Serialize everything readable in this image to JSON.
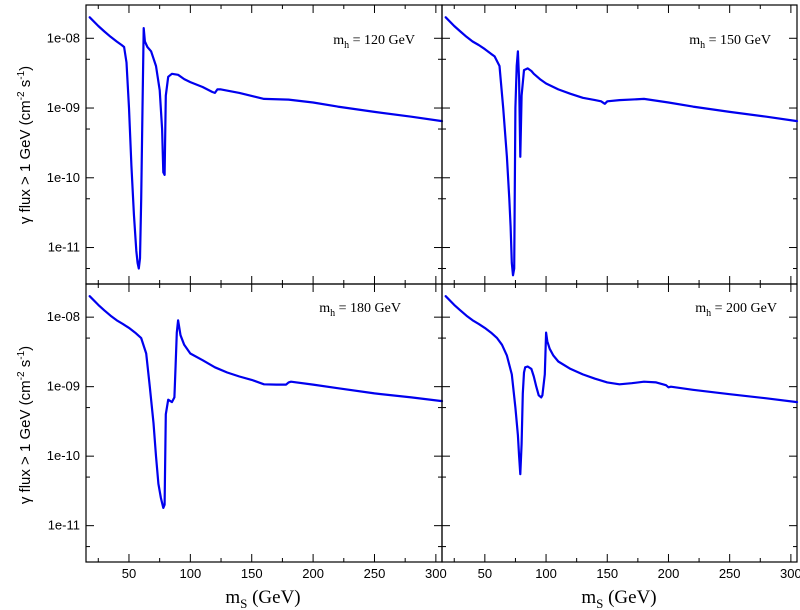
{
  "colors": {
    "series": "#0000ee",
    "axes": "#000000"
  },
  "chart_data": {
    "type": "line",
    "ylabel_parts": {
      "main": "γ flux > 1 GeV (cm",
      "exp1": "-2",
      "mid": " s",
      "exp2": "-1",
      "end": ")"
    },
    "xlabel_parts": {
      "base": "m",
      "sub": "S",
      "rest": " (GeV)"
    },
    "xlim": [
      15,
      305
    ],
    "ylim": [
      3e-12,
      3e-08
    ],
    "yscale": "log",
    "x_ticks": [
      50,
      100,
      150,
      200,
      250,
      300
    ],
    "x_tick_labels": [
      "50",
      "100",
      "150",
      "200",
      "250",
      "300"
    ],
    "y_ticks": [
      1e-08,
      1e-09,
      1e-10,
      1e-11
    ],
    "y_tick_labels": [
      "1e-08",
      "1e-09",
      "1e-10",
      "1e-11"
    ],
    "grid": false,
    "panels": [
      {
        "label_base": "m",
        "label_sub": "h",
        "label_rest": " = 120 GeV",
        "x": [
          18,
          25,
          30,
          35,
          40,
          44,
          46,
          48,
          50,
          52,
          54,
          56,
          57,
          58,
          59,
          60,
          61,
          62,
          63,
          65,
          68,
          72,
          75,
          77,
          78,
          79,
          80,
          82,
          85,
          90,
          95,
          100,
          110,
          118,
          120,
          122,
          125,
          140,
          160,
          180,
          200,
          220,
          250,
          280,
          305
        ],
        "y": [
          2e-08,
          1.5e-08,
          1.25e-08,
          1.05e-08,
          9e-09,
          8e-09,
          7.5e-09,
          4.5e-09,
          1e-09,
          1.5e-10,
          3e-11,
          9e-12,
          6e-12,
          5e-12,
          7e-12,
          5e-11,
          1e-09,
          1.4e-08,
          9e-09,
          7.5e-09,
          6.5e-09,
          4e-09,
          1.8e-09,
          5e-10,
          1.2e-10,
          1.1e-10,
          1.5e-09,
          2.8e-09,
          3.1e-09,
          3e-09,
          2.6e-09,
          2.35e-09,
          2e-09,
          1.7e-09,
          1.65e-09,
          1.85e-09,
          1.85e-09,
          1.65e-09,
          1.35e-09,
          1.32e-09,
          1.2e-09,
          1.05e-09,
          8.8e-10,
          7.5e-10,
          6.5e-10
        ]
      },
      {
        "label_base": "m",
        "label_sub": "h",
        "label_rest": " = 150 GeV",
        "x": [
          18,
          25,
          30,
          35,
          40,
          45,
          50,
          55,
          58,
          62,
          65,
          68,
          70,
          71,
          72,
          73,
          74,
          75,
          76,
          77,
          78,
          79,
          80,
          82,
          85,
          88,
          90,
          95,
          100,
          110,
          120,
          130,
          140,
          145,
          148,
          150,
          160,
          180,
          200,
          220,
          250,
          280,
          305
        ],
        "y": [
          2e-08,
          1.5e-08,
          1.25e-08,
          1.05e-08,
          9e-09,
          8e-09,
          7e-09,
          6e-09,
          5.5e-09,
          4e-09,
          1e-09,
          2e-10,
          5e-11,
          2e-11,
          6e-12,
          4e-12,
          5e-12,
          1e-09,
          4e-09,
          6.5e-09,
          2.5e-09,
          2e-10,
          1.5e-09,
          3.5e-09,
          3.7e-09,
          3.4e-09,
          3.1e-09,
          2.6e-09,
          2.25e-09,
          1.85e-09,
          1.6e-09,
          1.4e-09,
          1.3e-09,
          1.25e-09,
          1.15e-09,
          1.25e-09,
          1.3e-09,
          1.35e-09,
          1.2e-09,
          1.05e-09,
          8.8e-10,
          7.5e-10,
          6.5e-10
        ]
      },
      {
        "label_base": "m",
        "label_sub": "h",
        "label_rest": " = 180 GeV",
        "x": [
          18,
          25,
          30,
          35,
          40,
          45,
          50,
          55,
          60,
          64,
          67,
          70,
          72,
          74,
          76,
          78,
          79,
          80,
          82,
          85,
          87,
          88,
          89,
          90,
          92,
          95,
          100,
          110,
          120,
          130,
          140,
          150,
          160,
          170,
          178,
          180,
          182,
          200,
          220,
          250,
          280,
          305
        ],
        "y": [
          2e-08,
          1.5e-08,
          1.25e-08,
          1.05e-08,
          9e-09,
          8e-09,
          7e-09,
          6e-09,
          5e-09,
          3e-09,
          1e-09,
          3e-10,
          1e-10,
          4e-11,
          2.5e-11,
          1.8e-11,
          2e-11,
          4e-10,
          6.5e-10,
          6e-10,
          7e-10,
          2e-09,
          6e-09,
          9e-09,
          5.5e-09,
          4e-09,
          3e-09,
          2.4e-09,
          1.9e-09,
          1.6e-09,
          1.4e-09,
          1.25e-09,
          1.08e-09,
          1.07e-09,
          1.07e-09,
          1.15e-09,
          1.18e-09,
          1.07e-09,
          9.5e-10,
          8e-10,
          7e-10,
          6.2e-10
        ]
      },
      {
        "label_base": "m",
        "label_sub": "h",
        "label_rest": " = 200 GeV",
        "x": [
          18,
          25,
          30,
          35,
          40,
          45,
          50,
          55,
          60,
          64,
          68,
          72,
          75,
          77,
          78,
          79,
          80,
          81,
          82,
          83,
          85,
          88,
          90,
          92,
          94,
          96,
          97,
          99,
          100,
          101,
          103,
          106,
          110,
          120,
          130,
          140,
          150,
          160,
          170,
          180,
          190,
          198,
          200,
          202,
          220,
          250,
          280,
          305
        ],
        "y": [
          2e-08,
          1.5e-08,
          1.25e-08,
          1.05e-08,
          9e-09,
          8e-09,
          7e-09,
          6e-09,
          5e-09,
          4e-09,
          2.8e-09,
          1.5e-09,
          5e-10,
          2e-10,
          1e-10,
          5.5e-11,
          1.5e-10,
          8e-10,
          1.6e-09,
          1.9e-09,
          1.95e-09,
          1.8e-09,
          1.4e-09,
          1e-09,
          7.5e-10,
          7e-10,
          7.5e-10,
          1.5e-09,
          6e-09,
          4.5e-09,
          3.5e-09,
          2.8e-09,
          2.3e-09,
          1.8e-09,
          1.5e-09,
          1.3e-09,
          1.15e-09,
          1.08e-09,
          1.12e-09,
          1.18e-09,
          1.15e-09,
          1.05e-09,
          9.8e-10,
          1e-09,
          9e-10,
          7.8e-10,
          6.8e-10,
          6e-10
        ]
      }
    ]
  }
}
